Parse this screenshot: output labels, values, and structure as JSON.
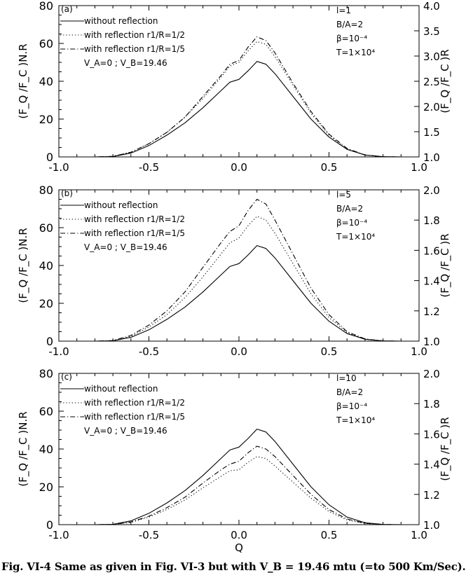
{
  "caption": "Fig. VI-4 Same as given in Fig. VI-3 but with V_B = 19.46 mtu (=to 500 Km/Sec).",
  "chart_data": [
    {
      "type": "line",
      "panel_label": "(a)",
      "xlabel": "",
      "ylabel": "(F_Q /F_C )N.R",
      "ylabel_right": "(F_Q /F_C )R",
      "xlim": [
        -1.0,
        1.0
      ],
      "ylim": [
        0,
        80
      ],
      "ylim_right": [
        1.0,
        4.0
      ],
      "x_ticks": [
        -1.0,
        -0.5,
        0.0,
        0.5,
        1.0
      ],
      "x_tick_labels": [
        "-1.0",
        "-0.5",
        "0.0",
        "0.5",
        "1.0"
      ],
      "y_ticks": [
        0,
        20,
        40,
        60,
        80
      ],
      "y_tick_labels": [
        "0",
        "20",
        "40",
        "60",
        "80"
      ],
      "y_right_ticks": [
        1.0,
        1.5,
        2.0,
        2.5,
        3.0,
        3.5,
        4.0
      ],
      "y_right_tick_labels": [
        "1.0",
        "1.5",
        "2.0",
        "2.5",
        "3.0",
        "3.5",
        "4.0"
      ],
      "params": [
        "l=1",
        "B/A=2",
        "β=10⁻⁴",
        "T=1×10⁴"
      ],
      "velocity_note": "V_A=0 ; V_B=19.46",
      "legend_position": "top-left",
      "x": [
        -1.0,
        -0.9,
        -0.8,
        -0.7,
        -0.6,
        -0.5,
        -0.4,
        -0.3,
        -0.2,
        -0.1,
        -0.05,
        0.0,
        0.05,
        0.1,
        0.15,
        0.2,
        0.3,
        0.4,
        0.5,
        0.6,
        0.7,
        0.8,
        0.9,
        1.0
      ],
      "series": [
        {
          "name": "without reflection",
          "style": "solid",
          "values": [
            0,
            0,
            0,
            0.2,
            2,
            6,
            11.5,
            18,
            26,
            35,
            39.5,
            41,
            45.5,
            50.5,
            49,
            44,
            32,
            20,
            10.5,
            4,
            1,
            0.1,
            0,
            0
          ]
        },
        {
          "name": "with reflection r1/R=1/2",
          "style": "dotted",
          "values": [
            0,
            0,
            0,
            0.3,
            2.5,
            7,
            13,
            21,
            31,
            42,
            48,
            50,
            56,
            61,
            59.5,
            53,
            38,
            23,
            11.5,
            4,
            1,
            0.1,
            0,
            0
          ]
        },
        {
          "name": "with reflection r1/R=1/5",
          "style": "dashdot",
          "values": [
            0,
            0,
            0,
            0.3,
            2.5,
            7,
            13,
            21,
            32,
            43,
            49,
            51,
            58,
            63.5,
            61.5,
            55,
            39,
            24,
            12,
            4.5,
            1,
            0.1,
            0,
            0
          ]
        }
      ]
    },
    {
      "type": "line",
      "panel_label": "(b)",
      "xlabel": "",
      "ylabel": "(F_Q /F_C )N.R",
      "ylabel_right": "(F_Q /F_C )R",
      "xlim": [
        -1.0,
        1.0
      ],
      "ylim": [
        0,
        80
      ],
      "ylim_right": [
        1.0,
        2.0
      ],
      "x_ticks": [
        -1.0,
        -0.5,
        0.0,
        0.5,
        1.0
      ],
      "x_tick_labels": [
        "-1.0",
        "-0.5",
        "0.0",
        "0.5",
        "1.0"
      ],
      "y_ticks": [
        0,
        20,
        40,
        60,
        80
      ],
      "y_tick_labels": [
        "0",
        "20",
        "40",
        "60",
        "80"
      ],
      "y_right_ticks": [
        1.0,
        1.2,
        1.4,
        1.6,
        1.8,
        2.0
      ],
      "y_right_tick_labels": [
        "1.0",
        "1.2",
        "1.4",
        "1.6",
        "1.8",
        "2.0"
      ],
      "params": [
        "l=5",
        "B/A=2",
        "β=10⁻⁴",
        "T=1×10⁴"
      ],
      "velocity_note": "V_A=0 ; V_B=19.46",
      "legend_position": "top-left",
      "x": [
        -1.0,
        -0.9,
        -0.8,
        -0.7,
        -0.6,
        -0.5,
        -0.4,
        -0.3,
        -0.2,
        -0.1,
        -0.05,
        0.0,
        0.05,
        0.1,
        0.15,
        0.2,
        0.3,
        0.4,
        0.5,
        0.6,
        0.7,
        0.8,
        0.9,
        1.0
      ],
      "series": [
        {
          "name": "without reflection",
          "style": "solid",
          "values": [
            0,
            0,
            0,
            0.2,
            2,
            6,
            11.5,
            18,
            26,
            35,
            39.5,
            41,
            45.5,
            50.5,
            49,
            44,
            32,
            20,
            10.5,
            4,
            1,
            0.1,
            0,
            0
          ]
        },
        {
          "name": "with reflection r1/R=1/2",
          "style": "dotted",
          "values": [
            0,
            0,
            0,
            0.3,
            2.5,
            7.5,
            14,
            23,
            34,
            46,
            52,
            54.5,
            61,
            66,
            64,
            57,
            41,
            25,
            12.5,
            4.5,
            1,
            0.1,
            0,
            0
          ]
        },
        {
          "name": "with reflection r1/R=1/5",
          "style": "dashdot",
          "values": [
            0,
            0,
            0,
            0.3,
            3,
            8.5,
            16,
            26,
            39,
            52,
            58,
            61,
            69,
            75,
            72.5,
            64,
            46,
            28,
            14,
            5,
            1.2,
            0.1,
            0,
            0
          ]
        }
      ]
    },
    {
      "type": "line",
      "panel_label": "(c)",
      "xlabel": "Q",
      "ylabel": "(F_Q /F_C )N.R",
      "ylabel_right": "(F_Q /F_C )R",
      "xlim": [
        -1.0,
        1.0
      ],
      "ylim": [
        0,
        80
      ],
      "ylim_right": [
        1.0,
        2.0
      ],
      "x_ticks": [
        -1.0,
        -0.5,
        0.0,
        0.5,
        1.0
      ],
      "x_tick_labels": [
        "-1.0",
        "-0.5",
        "0.0",
        "0.5",
        "1.0"
      ],
      "y_ticks": [
        0,
        20,
        40,
        60,
        80
      ],
      "y_tick_labels": [
        "0",
        "20",
        "40",
        "60",
        "80"
      ],
      "y_right_ticks": [
        1.0,
        1.2,
        1.4,
        1.6,
        1.8,
        2.0
      ],
      "y_right_tick_labels": [
        "1.0",
        "1.2",
        "1.4",
        "1.6",
        "1.8",
        "2.0"
      ],
      "params": [
        "l=10",
        "B/A=2",
        "β=10⁻⁴",
        "T=1×10⁴"
      ],
      "velocity_note": "V_A=0 ; V_B=19.46",
      "legend_position": "top-left",
      "x": [
        -1.0,
        -0.9,
        -0.8,
        -0.7,
        -0.6,
        -0.5,
        -0.4,
        -0.3,
        -0.2,
        -0.1,
        -0.05,
        0.0,
        0.05,
        0.1,
        0.15,
        0.2,
        0.3,
        0.4,
        0.5,
        0.6,
        0.7,
        0.8,
        0.9,
        1.0
      ],
      "series": [
        {
          "name": "without reflection",
          "style": "solid",
          "values": [
            0,
            0,
            0,
            0.2,
            2,
            6,
            11.5,
            18,
            26,
            35,
            39.5,
            41,
            45.5,
            50.5,
            49,
            44,
            32,
            20,
            10.5,
            4,
            1,
            0.1,
            0,
            0
          ]
        },
        {
          "name": "with reflection r1/R=1/2",
          "style": "dotted",
          "values": [
            0,
            0,
            0,
            0.1,
            1.2,
            4,
            8,
            13,
            19.5,
            25.5,
            28.5,
            29,
            33,
            36,
            35,
            31,
            22.5,
            14,
            7,
            2.5,
            0.6,
            0.1,
            0,
            0
          ]
        },
        {
          "name": "with reflection r1/R=1/5",
          "style": "dashdot",
          "values": [
            0,
            0,
            0,
            0.1,
            1.4,
            4.5,
            9,
            14.5,
            22,
            29,
            32,
            33.5,
            38,
            41.5,
            40,
            36,
            26,
            16,
            8,
            3,
            0.7,
            0.1,
            0,
            0
          ]
        }
      ]
    }
  ]
}
